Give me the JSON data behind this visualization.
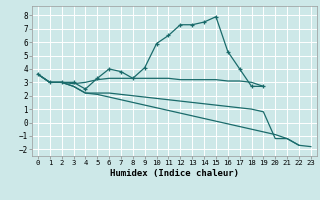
{
  "xlabel": "Humidex (Indice chaleur)",
  "xlim": [
    -0.5,
    23.5
  ],
  "ylim": [
    -2.5,
    8.7
  ],
  "xticks": [
    0,
    1,
    2,
    3,
    4,
    5,
    6,
    7,
    8,
    9,
    10,
    11,
    12,
    13,
    14,
    15,
    16,
    17,
    18,
    19,
    20,
    21,
    22,
    23
  ],
  "yticks": [
    -2,
    -1,
    0,
    1,
    2,
    3,
    4,
    5,
    6,
    7,
    8
  ],
  "bg_color": "#cde8e8",
  "line_color": "#1a6b6b",
  "grid_color": "#ffffff",
  "lines": [
    {
      "x": [
        0,
        1,
        2,
        3,
        4,
        5,
        6,
        7,
        8,
        9,
        10,
        11,
        12,
        13,
        14,
        15,
        16,
        17,
        18,
        19
      ],
      "y": [
        3.6,
        3.0,
        3.0,
        3.0,
        2.5,
        3.3,
        4.0,
        3.8,
        3.3,
        4.1,
        5.9,
        6.5,
        7.3,
        7.3,
        7.5,
        7.9,
        5.3,
        4.0,
        2.7,
        2.7
      ],
      "marker": true
    },
    {
      "x": [
        0,
        1,
        2,
        3,
        4,
        5,
        6,
        7,
        8,
        9,
        10,
        11,
        12,
        13,
        14,
        15,
        16,
        17,
        18,
        19
      ],
      "y": [
        3.6,
        3.0,
        3.0,
        2.9,
        3.0,
        3.2,
        3.3,
        3.3,
        3.3,
        3.3,
        3.3,
        3.3,
        3.2,
        3.2,
        3.2,
        3.2,
        3.1,
        3.1,
        3.0,
        2.7
      ],
      "marker": false
    },
    {
      "x": [
        0,
        1,
        2,
        3,
        4,
        5,
        6,
        7,
        8,
        9,
        10,
        11,
        12,
        13,
        14,
        15,
        16,
        17,
        18,
        19,
        20,
        21,
        22
      ],
      "y": [
        3.6,
        3.0,
        3.0,
        2.7,
        2.2,
        2.2,
        2.2,
        2.1,
        2.0,
        1.9,
        1.8,
        1.7,
        1.6,
        1.5,
        1.4,
        1.3,
        1.2,
        1.1,
        1.0,
        0.8,
        -1.2,
        -1.2,
        -1.7
      ],
      "marker": false
    },
    {
      "x": [
        0,
        1,
        2,
        3,
        4,
        5,
        6,
        7,
        8,
        9,
        10,
        11,
        12,
        13,
        14,
        15,
        16,
        17,
        18,
        19,
        20,
        21,
        22,
        23
      ],
      "y": [
        3.6,
        3.0,
        3.0,
        2.7,
        2.2,
        2.1,
        1.9,
        1.7,
        1.5,
        1.3,
        1.1,
        0.9,
        0.7,
        0.5,
        0.3,
        0.1,
        -0.1,
        -0.3,
        -0.5,
        -0.7,
        -0.9,
        -1.2,
        -1.7,
        -1.8
      ],
      "marker": false
    }
  ]
}
